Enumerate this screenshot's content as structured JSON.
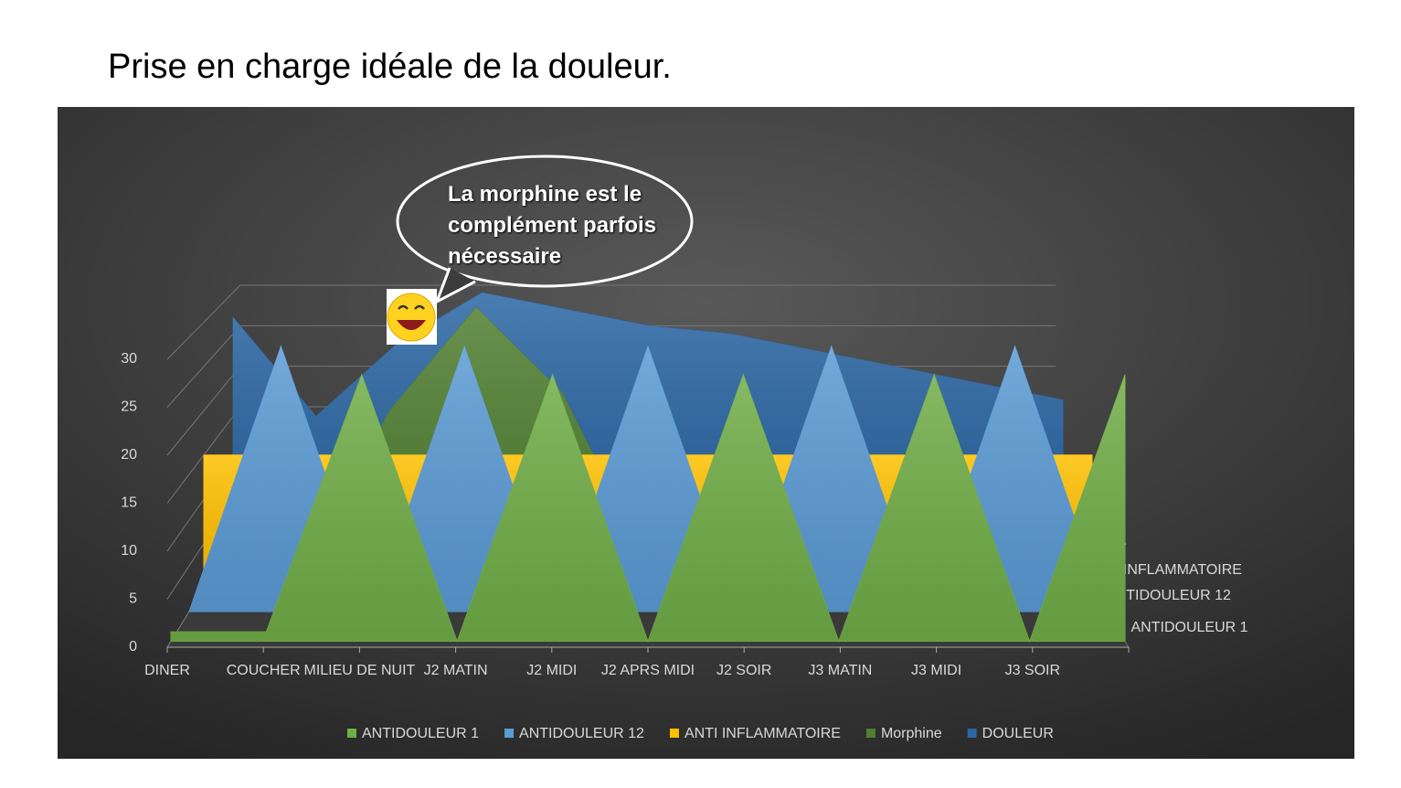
{
  "title": "Prise en charge idéale de la douleur.",
  "chart_data": {
    "type": "area3d",
    "annotation": "La morphine est le complément parfois nécessaire",
    "categories": [
      "DINER",
      "COUCHER",
      "MILIEU DE NUIT",
      "J2 MATIN",
      "J2  MIDI",
      "J2 APRS MIDI",
      "J2 SOIR",
      "J3 MATIN",
      "J3 MIDI",
      "J3 SOIR",
      null
    ],
    "series": [
      {
        "name": "ANTIDOULEUR 1",
        "color": "#70ad47",
        "values": [
          1,
          1,
          28,
          0,
          28,
          0,
          28,
          0,
          28,
          0,
          28
        ]
      },
      {
        "name": "ANTIDOULEUR 12",
        "color": "#5b9bd5",
        "values": [
          0,
          29,
          0,
          29,
          0,
          29,
          0,
          29,
          0,
          29,
          0
        ]
      },
      {
        "name": "ANTI INFLAMMATOIRE",
        "color": "#ffc000",
        "values": [
          15,
          15,
          15,
          15,
          15,
          15,
          15,
          15,
          15,
          15,
          15
        ]
      },
      {
        "name": "Morphine",
        "color": "#4f7f31",
        "values": [
          0,
          0,
          18,
          30,
          20,
          0,
          0,
          0,
          0,
          0,
          0
        ]
      },
      {
        "name": "DOULEUR",
        "color": "#2a66a3",
        "values": [
          27,
          15,
          24,
          30,
          28,
          26,
          25,
          23,
          21,
          19,
          17
        ]
      }
    ],
    "ylim": [
      0,
      30
    ],
    "yticks": [
      0,
      5,
      10,
      15,
      20,
      25,
      30
    ],
    "grid": true,
    "legend": "bottom"
  }
}
